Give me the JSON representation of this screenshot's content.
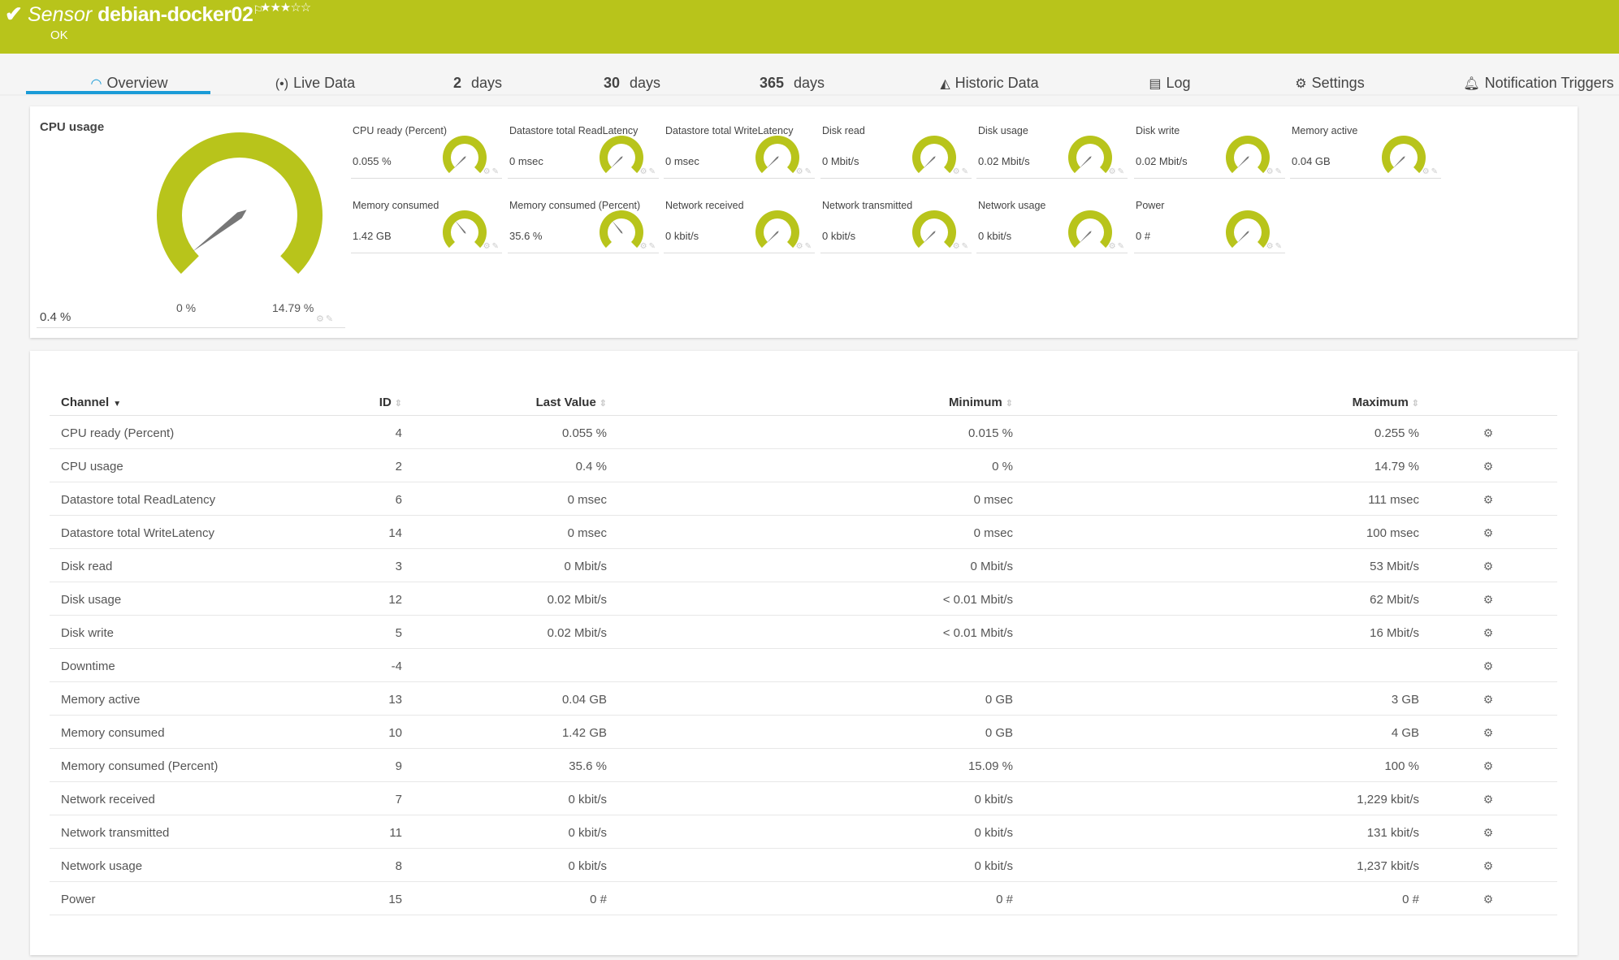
{
  "header": {
    "type_label": "Sensor",
    "name": "debian-docker02",
    "stars": "★★★☆☆",
    "rating": 3,
    "status": "OK",
    "color": "#b8c41b"
  },
  "tabs": [
    {
      "label": "Overview",
      "icon": "gauge-icon",
      "active": true
    },
    {
      "label": "Live Data",
      "icon": "broadcast-icon"
    },
    {
      "num": "2",
      "label": "days"
    },
    {
      "num": "30",
      "label": "days"
    },
    {
      "num": "365",
      "label": "days"
    },
    {
      "label": "Historic Data",
      "icon": "area-chart-icon"
    },
    {
      "label": "Log",
      "icon": "list-icon"
    },
    {
      "label": "Settings",
      "icon": "gear-icon"
    },
    {
      "label": "Notification Triggers",
      "icon": "bell-icon"
    }
  ],
  "primary_gauge": {
    "title": "CPU usage",
    "value": "0.4 %",
    "min": "0 %",
    "max": "14.79 %",
    "level": 0.027
  },
  "gauges": [
    {
      "title": "CPU ready (Percent)",
      "value": "0.055 %",
      "level": 0.0
    },
    {
      "title": "Datastore total ReadLatency",
      "value": "0 msec",
      "level": 0.0
    },
    {
      "title": "Datastore total WriteLatency",
      "value": "0 msec",
      "level": 0.0
    },
    {
      "title": "Disk read",
      "value": "0 Mbit/s",
      "level": 0.0
    },
    {
      "title": "Disk usage",
      "value": "0.02 Mbit/s",
      "level": 0.0
    },
    {
      "title": "Disk write",
      "value": "0.02 Mbit/s",
      "level": 0.0
    },
    {
      "title": "Memory active",
      "value": "0.04 GB",
      "level": 0.0
    },
    {
      "title": "Memory consumed",
      "value": "1.42 GB",
      "level": 0.355
    },
    {
      "title": "Memory consumed (Percent)",
      "value": "35.6 %",
      "level": 0.356
    },
    {
      "title": "Network received",
      "value": "0 kbit/s",
      "level": 0.0
    },
    {
      "title": "Network transmitted",
      "value": "0 kbit/s",
      "level": 0.0
    },
    {
      "title": "Network usage",
      "value": "0 kbit/s",
      "level": 0.0
    },
    {
      "title": "Power",
      "value": "0 #",
      "level": 0.0
    }
  ],
  "table": {
    "columns": [
      "Channel",
      "ID",
      "Last Value",
      "Minimum",
      "Maximum"
    ],
    "rows": [
      [
        "CPU ready (Percent)",
        "4",
        "0.055 %",
        "0.015 %",
        "0.255 %"
      ],
      [
        "CPU usage",
        "2",
        "0.4 %",
        "0 %",
        "14.79 %"
      ],
      [
        "Datastore total ReadLatency",
        "6",
        "0 msec",
        "0 msec",
        "111 msec"
      ],
      [
        "Datastore total WriteLatency",
        "14",
        "0 msec",
        "0 msec",
        "100 msec"
      ],
      [
        "Disk read",
        "3",
        "0 Mbit/s",
        "0 Mbit/s",
        "53 Mbit/s"
      ],
      [
        "Disk usage",
        "12",
        "0.02 Mbit/s",
        "< 0.01 Mbit/s",
        "62 Mbit/s"
      ],
      [
        "Disk write",
        "5",
        "0.02 Mbit/s",
        "< 0.01 Mbit/s",
        "16 Mbit/s"
      ],
      [
        "Downtime",
        "-4",
        "",
        "",
        ""
      ],
      [
        "Memory active",
        "13",
        "0.04 GB",
        "0 GB",
        "3 GB"
      ],
      [
        "Memory consumed",
        "10",
        "1.42 GB",
        "0 GB",
        "4 GB"
      ],
      [
        "Memory consumed (Percent)",
        "9",
        "35.6 %",
        "15.09 %",
        "100 %"
      ],
      [
        "Network received",
        "7",
        "0 kbit/s",
        "0 kbit/s",
        "1,229 kbit/s"
      ],
      [
        "Network transmitted",
        "11",
        "0 kbit/s",
        "0 kbit/s",
        "131 kbit/s"
      ],
      [
        "Network usage",
        "8",
        "0 kbit/s",
        "0 kbit/s",
        "1,237 kbit/s"
      ],
      [
        "Power",
        "15",
        "0 #",
        "0 #",
        "0 #"
      ]
    ]
  },
  "colors": {
    "accent": "#1a9bd7",
    "gauge": "#b8c41b",
    "needle": "#777777"
  }
}
